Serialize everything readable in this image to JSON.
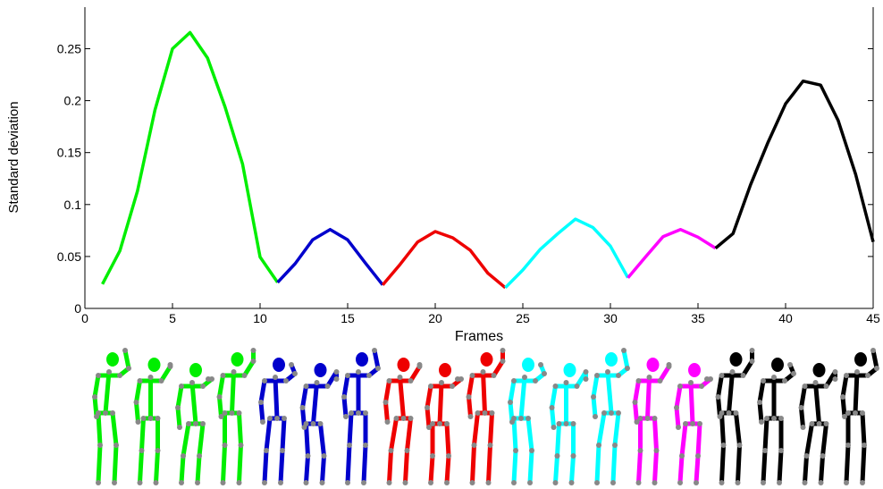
{
  "chart_data": {
    "type": "line",
    "xlabel": "Frames",
    "ylabel": "Standard deviation",
    "xlim": [
      0,
      45
    ],
    "xticks": [
      0,
      5,
      10,
      15,
      20,
      25,
      30,
      35,
      40,
      45
    ],
    "ylim": [
      0,
      0.29
    ],
    "yticks": [
      0,
      0.05,
      0.1,
      0.15,
      0.2,
      0.25
    ],
    "series": [
      {
        "color": "#00ee00",
        "x": [
          1,
          2,
          3,
          4,
          5,
          6,
          7,
          8,
          9,
          10,
          11
        ],
        "values": [
          0.0234,
          0.0556,
          0.113,
          0.191,
          0.25,
          0.2656,
          0.241,
          0.194,
          0.139,
          0.0495,
          0.025
        ]
      },
      {
        "color": "#0000cc",
        "x": [
          11,
          12,
          13,
          14,
          15,
          16,
          17
        ],
        "values": [
          0.025,
          0.043,
          0.066,
          0.076,
          0.066,
          0.044,
          0.0226
        ]
      },
      {
        "color": "#ee0000",
        "x": [
          17,
          18,
          19,
          20,
          21,
          22,
          23,
          24
        ],
        "values": [
          0.0226,
          0.0425,
          0.064,
          0.074,
          0.068,
          0.056,
          0.034,
          0.02
        ]
      },
      {
        "color": "#00ffff",
        "x": [
          24,
          25,
          26,
          27,
          28,
          29,
          30,
          31
        ],
        "values": [
          0.02,
          0.037,
          0.057,
          0.072,
          0.086,
          0.078,
          0.06,
          0.0295
        ]
      },
      {
        "color": "#ff00ff",
        "x": [
          31,
          32,
          33,
          34,
          35,
          36
        ],
        "values": [
          0.0295,
          0.0495,
          0.069,
          0.076,
          0.0686,
          0.058
        ]
      },
      {
        "color": "#000000",
        "x": [
          36,
          37,
          38,
          39,
          40,
          41,
          42,
          43,
          44,
          45
        ],
        "values": [
          0.058,
          0.072,
          0.119,
          0.16,
          0.197,
          0.2188,
          0.215,
          0.181,
          0.129,
          0.064
        ]
      }
    ]
  }
}
